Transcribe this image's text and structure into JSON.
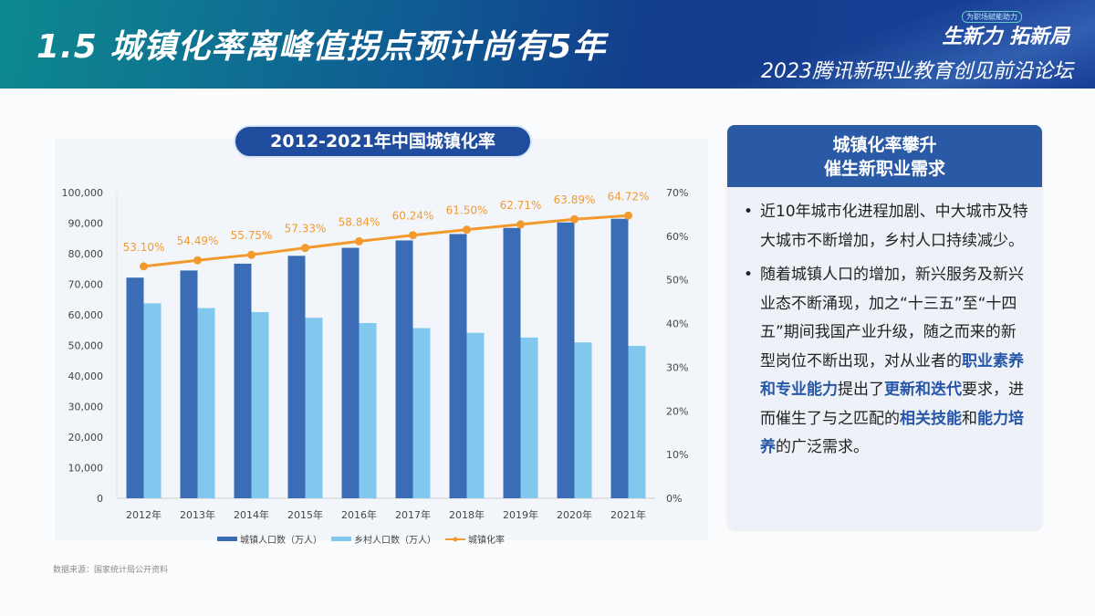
{
  "header": {
    "title": "1.5  城镇化率离峰值拐点预计尚有5年",
    "slogan": "生新力 拓新局",
    "forum": "2023腾讯新职业教育创见前沿论坛",
    "tag": "为职场赋能助力"
  },
  "chart_data": {
    "type": "bar",
    "title": "2012-2021年中国城镇化率",
    "categories": [
      "2012年",
      "2013年",
      "2014年",
      "2015年",
      "2016年",
      "2017年",
      "2018年",
      "2019年",
      "2020年",
      "2021年"
    ],
    "series": [
      {
        "name": "城镇人口数（万人）",
        "type": "bar",
        "axis": "left",
        "color": "#3a6db5",
        "values": [
          72175,
          74502,
          76738,
          79302,
          81924,
          84343,
          86433,
          88426,
          90220,
          91425
        ]
      },
      {
        "name": "乡村人口数（万人）",
        "type": "bar",
        "axis": "left",
        "color": "#82c8ee",
        "values": [
          63747,
          62224,
          60908,
          59024,
          57308,
          55668,
          54108,
          52582,
          50992,
          49835
        ]
      },
      {
        "name": "城镇化率",
        "type": "line",
        "axis": "right",
        "color": "#f39a2e",
        "values": [
          53.1,
          54.49,
          55.75,
          57.33,
          58.84,
          60.24,
          61.5,
          62.71,
          63.89,
          64.72
        ],
        "labels": [
          "53.10%",
          "54.49%",
          "55.75%",
          "57.33%",
          "58.84%",
          "60.24%",
          "61.50%",
          "62.71%",
          "63.89%",
          "64.72%"
        ]
      }
    ],
    "ylim": [
      0,
      100000
    ],
    "y2lim": [
      0,
      70
    ],
    "yticks": [
      "0",
      "10,000",
      "20,000",
      "30,000",
      "40,000",
      "50,000",
      "60,000",
      "70,000",
      "80,000",
      "90,000",
      "100,000"
    ],
    "y2ticks": [
      "0%",
      "10%",
      "20%",
      "30%",
      "40%",
      "50%",
      "60%",
      "70%"
    ],
    "grid": false,
    "legend": "bottom"
  },
  "source": "数据来源：国家统计局公开资料",
  "side": {
    "title1": "城镇化率攀升",
    "title2": "催生新职业需求",
    "p1": "近10年城市化进程加剧、中大城市及特大城市不断增加，乡村人口持续减少。",
    "p2a": "随着城镇人口的增加，新兴服务及新兴业态不断涌现，加之“十三五”至“十四五”期间我国产业升级，随之而来的新型岗位不断出现，对从业者的",
    "h1": "职业素养和专业能力",
    "p2b": "提出了",
    "h2": "更新和迭代",
    "p2c": "要求，进而催生了与之匹配的",
    "h3": "相关技能",
    "p2d": "和",
    "h4": "能力培养",
    "p2e": "的广泛需求。"
  }
}
